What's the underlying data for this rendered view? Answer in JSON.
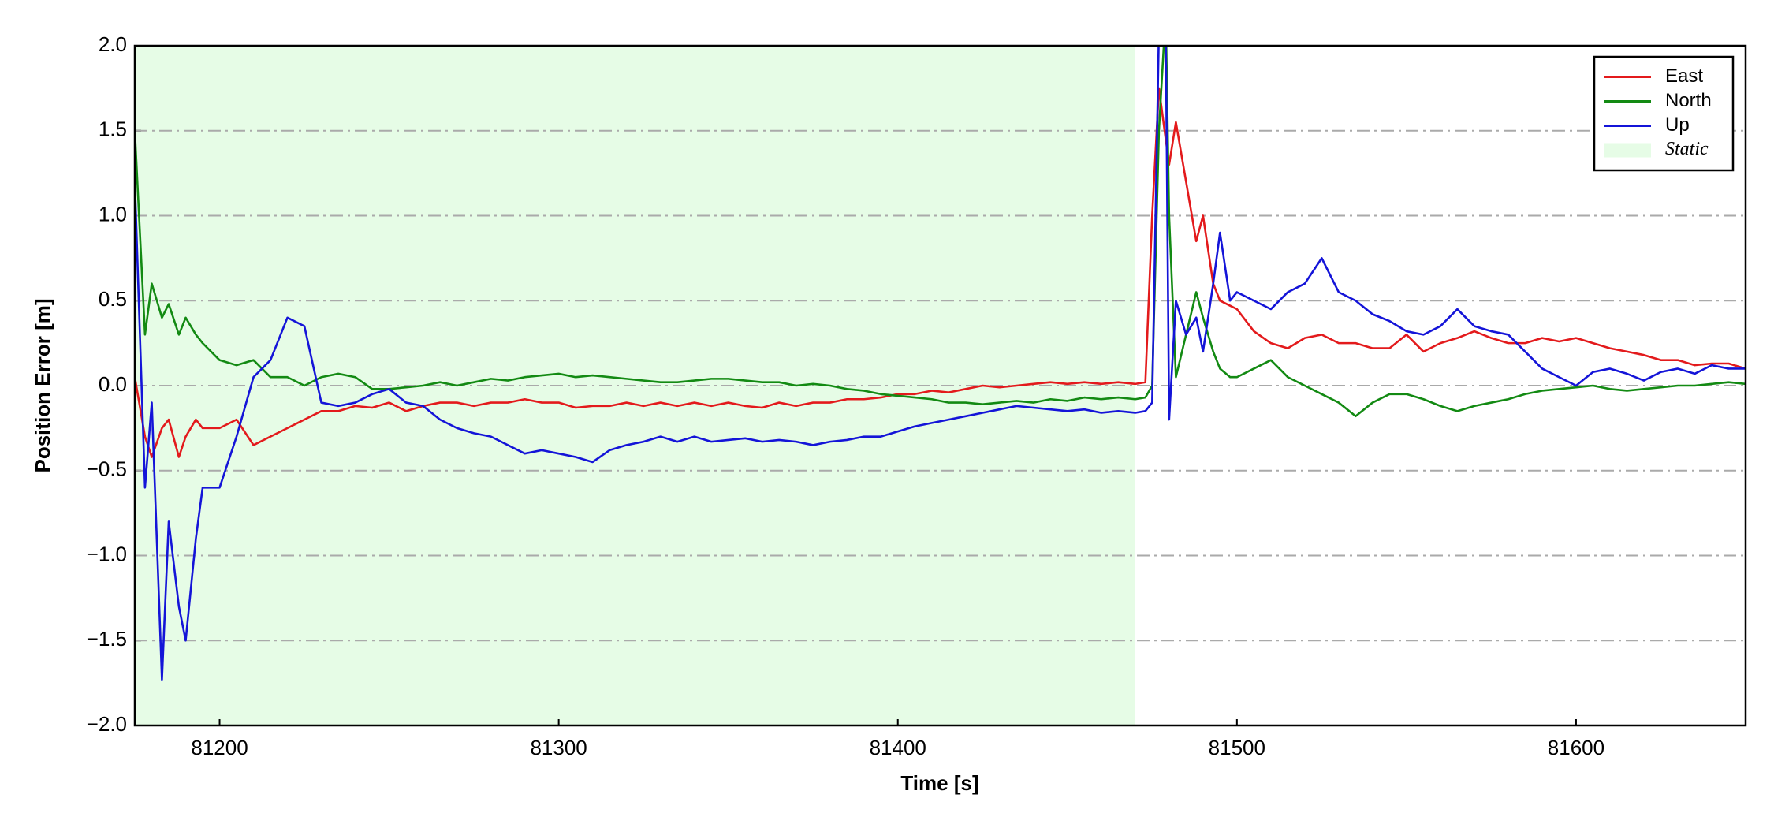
{
  "chart_data": {
    "type": "line",
    "xlabel": "Time [s]",
    "ylabel": "Position Error [m]",
    "xlim": [
      81175,
      81650
    ],
    "ylim": [
      -2,
      2
    ],
    "xticks": [
      81200,
      81300,
      81400,
      81500,
      81600
    ],
    "yticks": [
      {
        "value": -2,
        "label": "−2.0"
      },
      {
        "value": -1.5,
        "label": "−1.5"
      },
      {
        "value": -1,
        "label": "−1.0"
      },
      {
        "value": -0.5,
        "label": "−0.5"
      },
      {
        "value": 0,
        "label": "0.0"
      },
      0.5,
      {
        "value": 1,
        "label": "1.0"
      },
      1.5,
      {
        "value": 2,
        "label": "2.0"
      }
    ],
    "grid": true,
    "legend": "upper right",
    "spans": [
      {
        "name": "Static",
        "start": 81175,
        "end": 81470,
        "color": "#e6fce6"
      }
    ],
    "x": [
      81175,
      81178,
      81180,
      81183,
      81185,
      81188,
      81190,
      81193,
      81195,
      81200,
      81205,
      81210,
      81215,
      81220,
      81225,
      81230,
      81235,
      81240,
      81245,
      81250,
      81255,
      81260,
      81265,
      81270,
      81275,
      81280,
      81285,
      81290,
      81295,
      81300,
      81305,
      81310,
      81315,
      81320,
      81325,
      81330,
      81335,
      81340,
      81345,
      81350,
      81355,
      81360,
      81365,
      81370,
      81375,
      81380,
      81385,
      81390,
      81395,
      81400,
      81405,
      81410,
      81415,
      81420,
      81425,
      81430,
      81435,
      81440,
      81445,
      81450,
      81455,
      81460,
      81465,
      81470,
      81473,
      81475,
      81477,
      81479,
      81480,
      81482,
      81485,
      81488,
      81490,
      81493,
      81495,
      81498,
      81500,
      81505,
      81510,
      81515,
      81520,
      81525,
      81530,
      81535,
      81540,
      81545,
      81550,
      81555,
      81560,
      81565,
      81570,
      81575,
      81580,
      81585,
      81590,
      81595,
      81600,
      81605,
      81610,
      81615,
      81620,
      81625,
      81630,
      81635,
      81640,
      81645,
      81650
    ],
    "series": [
      {
        "name": "East",
        "color": "#e31a1c",
        "values": [
          0.05,
          -0.3,
          -0.42,
          -0.25,
          -0.2,
          -0.42,
          -0.3,
          -0.2,
          -0.25,
          -0.25,
          -0.2,
          -0.35,
          -0.3,
          -0.25,
          -0.2,
          -0.15,
          -0.15,
          -0.12,
          -0.13,
          -0.1,
          -0.15,
          -0.12,
          -0.1,
          -0.1,
          -0.12,
          -0.1,
          -0.1,
          -0.08,
          -0.1,
          -0.1,
          -0.13,
          -0.12,
          -0.12,
          -0.1,
          -0.12,
          -0.1,
          -0.12,
          -0.1,
          -0.12,
          -0.1,
          -0.12,
          -0.13,
          -0.1,
          -0.12,
          -0.1,
          -0.1,
          -0.08,
          -0.08,
          -0.07,
          -0.05,
          -0.05,
          -0.03,
          -0.04,
          -0.02,
          0,
          -0.01,
          0,
          0.01,
          0.02,
          0.01,
          0.02,
          0.01,
          0.02,
          0.01,
          0.02,
          1.0,
          1.75,
          1.45,
          1.3,
          1.55,
          1.2,
          0.85,
          1.0,
          0.6,
          0.5,
          0.47,
          0.45,
          0.32,
          0.25,
          0.22,
          0.28,
          0.3,
          0.25,
          0.25,
          0.22,
          0.22,
          0.3,
          0.2,
          0.25,
          0.28,
          0.32,
          0.28,
          0.25,
          0.25,
          0.28,
          0.26,
          0.28,
          0.25,
          0.22,
          0.2,
          0.18,
          0.15,
          0.15,
          0.12,
          0.13,
          0.13,
          0.1
        ]
      },
      {
        "name": "North",
        "color": "#138a13",
        "values": [
          1.5,
          0.3,
          0.6,
          0.4,
          0.48,
          0.3,
          0.4,
          0.3,
          0.25,
          0.15,
          0.12,
          0.15,
          0.05,
          0.05,
          0,
          0.05,
          0.07,
          0.05,
          -0.02,
          -0.02,
          -0.01,
          0,
          0.02,
          0,
          0.02,
          0.04,
          0.03,
          0.05,
          0.06,
          0.07,
          0.05,
          0.06,
          0.05,
          0.04,
          0.03,
          0.02,
          0.02,
          0.03,
          0.04,
          0.04,
          0.03,
          0.02,
          0.02,
          0,
          0.01,
          0,
          -0.02,
          -0.03,
          -0.05,
          -0.06,
          -0.07,
          -0.08,
          -0.1,
          -0.1,
          -0.11,
          -0.1,
          -0.09,
          -0.1,
          -0.08,
          -0.09,
          -0.07,
          -0.08,
          -0.07,
          -0.08,
          -0.07,
          0,
          1.5,
          2.2,
          1.0,
          0.05,
          0.3,
          0.55,
          0.4,
          0.2,
          0.1,
          0.05,
          0.05,
          0.1,
          0.15,
          0.05,
          0,
          -0.05,
          -0.1,
          -0.18,
          -0.1,
          -0.05,
          -0.05,
          -0.08,
          -0.12,
          -0.15,
          -0.12,
          -0.1,
          -0.08,
          -0.05,
          -0.03,
          -0.02,
          -0.01,
          0,
          -0.02,
          -0.03,
          -0.02,
          -0.01,
          0,
          0,
          0.01,
          0.02,
          0.01
        ]
      },
      {
        "name": "Up",
        "color": "#1414d8",
        "values": [
          1.2,
          -0.6,
          -0.1,
          -1.73,
          -0.8,
          -1.3,
          -1.5,
          -0.9,
          -0.6,
          -0.6,
          -0.3,
          0.05,
          0.15,
          0.4,
          0.35,
          -0.1,
          -0.12,
          -0.1,
          -0.05,
          -0.02,
          -0.1,
          -0.12,
          -0.2,
          -0.25,
          -0.28,
          -0.3,
          -0.35,
          -0.4,
          -0.38,
          -0.4,
          -0.42,
          -0.45,
          -0.38,
          -0.35,
          -0.33,
          -0.3,
          -0.33,
          -0.3,
          -0.33,
          -0.32,
          -0.31,
          -0.33,
          -0.32,
          -0.33,
          -0.35,
          -0.33,
          -0.32,
          -0.3,
          -0.3,
          -0.27,
          -0.24,
          -0.22,
          -0.2,
          -0.18,
          -0.16,
          -0.14,
          -0.12,
          -0.13,
          -0.14,
          -0.15,
          -0.14,
          -0.16,
          -0.15,
          -0.16,
          -0.15,
          -0.1,
          2.1,
          2.1,
          -0.2,
          0.5,
          0.3,
          0.4,
          0.2,
          0.6,
          0.9,
          0.5,
          0.55,
          0.5,
          0.45,
          0.55,
          0.6,
          0.75,
          0.55,
          0.5,
          0.42,
          0.38,
          0.32,
          0.3,
          0.35,
          0.45,
          0.35,
          0.32,
          0.3,
          0.2,
          0.1,
          0.05,
          0,
          0.08,
          0.1,
          0.07,
          0.03,
          0.08,
          0.1,
          0.07,
          0.12,
          0.1,
          0.1
        ]
      }
    ]
  }
}
